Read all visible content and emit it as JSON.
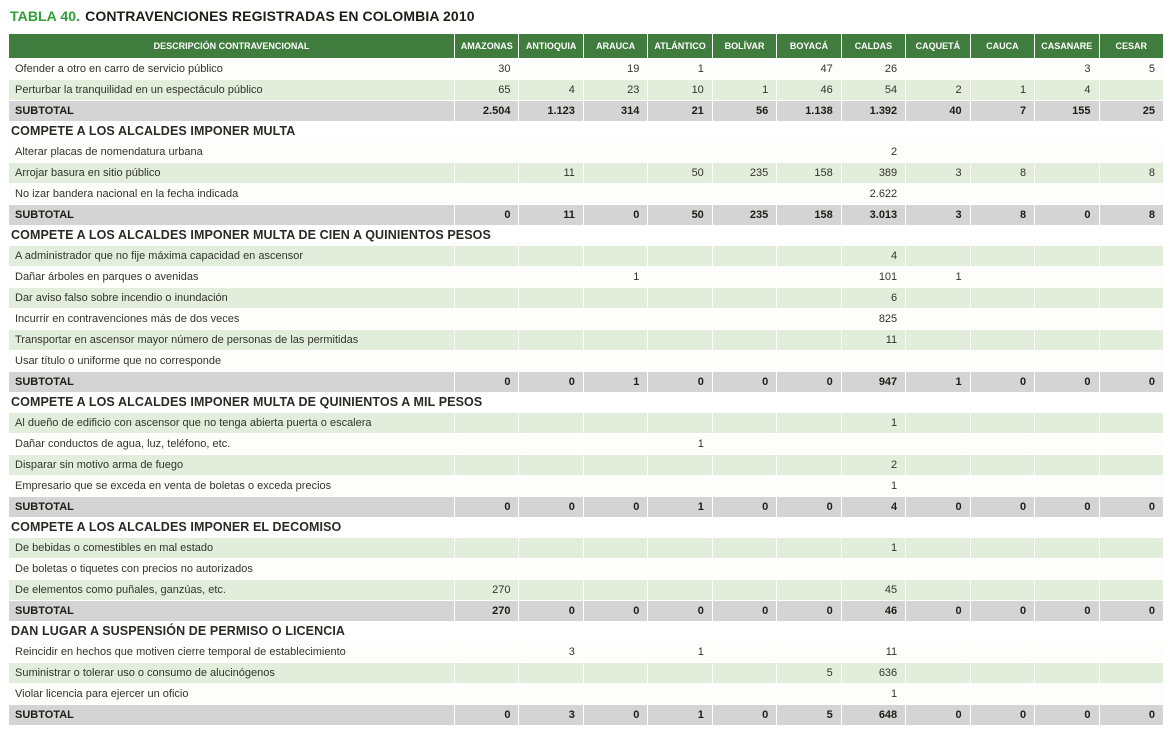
{
  "colors": {
    "title_green": "#2f9e36",
    "header_green": "#3f7c3d",
    "row_tint": "#e2eedb",
    "row_plain": "#fdfdfc",
    "subtotal_gray": "#d4d4d4"
  },
  "title": {
    "prefix": "TABLA 40.",
    "text": "CONTRAVENCIONES REGISTRADAS EN COLOMBIA 2010"
  },
  "table": {
    "columns": [
      "DESCRIPCIÓN CONTRAVENCIONAL",
      "AMAZONAS",
      "ANTIOQUIA",
      "ARAUCA",
      "ATLÁNTICO",
      "BOLÍVAR",
      "BOYACÁ",
      "CALDAS",
      "CAQUETÁ",
      "CAUCA",
      "CASANARE",
      "CESAR"
    ],
    "subtotal_label": "SUBTOTAL",
    "sections": [
      {
        "header": null,
        "rows": [
          {
            "label": "Ofender a otro en carro de servicio público",
            "values": [
              "30",
              "",
              "19",
              "1",
              "",
              "47",
              "26",
              "",
              "",
              "3",
              "5"
            ]
          },
          {
            "label": "Perturbar la tranquilidad en un espectáculo público",
            "values": [
              "65",
              "4",
              "23",
              "10",
              "1",
              "46",
              "54",
              "2",
              "1",
              "4",
              ""
            ]
          }
        ],
        "subtotal": [
          "2.504",
          "1.123",
          "314",
          "21",
          "56",
          "1.138",
          "1.392",
          "40",
          "7",
          "155",
          "25"
        ]
      },
      {
        "header": "COMPETE A LOS ALCALDES IMPONER MULTA",
        "rows": [
          {
            "label": "Alterar placas de nomendatura urbana",
            "values": [
              "",
              "",
              "",
              "",
              "",
              "",
              "2",
              "",
              "",
              "",
              ""
            ]
          },
          {
            "label": "Arrojar basura en sitio público",
            "values": [
              "",
              "11",
              "",
              "50",
              "235",
              "158",
              "389",
              "3",
              "8",
              "",
              "8"
            ]
          },
          {
            "label": "No izar bandera nacional en la fecha indicada",
            "values": [
              "",
              "",
              "",
              "",
              "",
              "",
              "2.622",
              "",
              "",
              "",
              ""
            ]
          }
        ],
        "subtotal": [
          "0",
          "11",
          "0",
          "50",
          "235",
          "158",
          "3.013",
          "3",
          "8",
          "0",
          "8"
        ]
      },
      {
        "header": "COMPETE A LOS ALCALDES IMPONER MULTA DE CIEN A QUINIENTOS PESOS",
        "rows": [
          {
            "label": "A administrador que no fije máxima capacidad en ascensor",
            "values": [
              "",
              "",
              "",
              "",
              "",
              "",
              "4",
              "",
              "",
              "",
              ""
            ]
          },
          {
            "label": "Dañar árboles en parques o avenidas",
            "values": [
              "",
              "",
              "1",
              "",
              "",
              "",
              "101",
              "1",
              "",
              "",
              ""
            ]
          },
          {
            "label": "Dar aviso falso sobre incendio o inundación",
            "values": [
              "",
              "",
              "",
              "",
              "",
              "",
              "6",
              "",
              "",
              "",
              ""
            ]
          },
          {
            "label": "Incurrir en contravenciones más de dos veces",
            "values": [
              "",
              "",
              "",
              "",
              "",
              "",
              "825",
              "",
              "",
              "",
              ""
            ]
          },
          {
            "label": "Transportar en ascensor mayor número de personas de las permitidas",
            "values": [
              "",
              "",
              "",
              "",
              "",
              "",
              "11",
              "",
              "",
              "",
              ""
            ]
          },
          {
            "label": "Usar título o uniforme que no corresponde",
            "values": [
              "",
              "",
              "",
              "",
              "",
              "",
              "",
              "",
              "",
              "",
              ""
            ]
          }
        ],
        "subtotal": [
          "0",
          "0",
          "1",
          "0",
          "0",
          "0",
          "947",
          "1",
          "0",
          "0",
          "0"
        ]
      },
      {
        "header": "COMPETE A LOS ALCALDES IMPONER MULTA DE QUINIENTOS A MIL PESOS",
        "rows": [
          {
            "label": "Al dueño de edificio con ascensor que no tenga abierta puerta o escalera",
            "values": [
              "",
              "",
              "",
              "",
              "",
              "",
              "1",
              "",
              "",
              "",
              ""
            ]
          },
          {
            "label": "Dañar conductos de agua, luz, teléfono, etc.",
            "values": [
              "",
              "",
              "",
              "1",
              "",
              "",
              "",
              "",
              "",
              "",
              ""
            ]
          },
          {
            "label": "Disparar sin motivo arma de fuego",
            "values": [
              "",
              "",
              "",
              "",
              "",
              "",
              "2",
              "",
              "",
              "",
              ""
            ]
          },
          {
            "label": "Empresario que se exceda en venta de boletas o exceda precios",
            "values": [
              "",
              "",
              "",
              "",
              "",
              "",
              "1",
              "",
              "",
              "",
              ""
            ]
          }
        ],
        "subtotal": [
          "0",
          "0",
          "0",
          "1",
          "0",
          "0",
          "4",
          "0",
          "0",
          "0",
          "0"
        ]
      },
      {
        "header": "COMPETE A LOS ALCALDES IMPONER EL DECOMISO",
        "rows": [
          {
            "label": "De bebidas o comestibles en mal estado",
            "values": [
              "",
              "",
              "",
              "",
              "",
              "",
              "1",
              "",
              "",
              "",
              ""
            ]
          },
          {
            "label": "De boletas o tiquetes con precios no autorizados",
            "values": [
              "",
              "",
              "",
              "",
              "",
              "",
              "",
              "",
              "",
              "",
              ""
            ]
          },
          {
            "label": "De elementos como puñales, ganzúas, etc.",
            "values": [
              "270",
              "",
              "",
              "",
              "",
              "",
              "45",
              "",
              "",
              "",
              ""
            ]
          }
        ],
        "subtotal": [
          "270",
          "0",
          "0",
          "0",
          "0",
          "0",
          "46",
          "0",
          "0",
          "0",
          "0"
        ]
      },
      {
        "header": "DAN LUGAR A SUSPENSIÓN DE PERMISO O LICENCIA",
        "rows": [
          {
            "label": "Reincidir en hechos que motiven cierre temporal de establecimiento",
            "values": [
              "",
              "3",
              "",
              "1",
              "",
              "",
              "11",
              "",
              "",
              "",
              ""
            ]
          },
          {
            "label": "Suministrar o tolerar uso o consumo de alucinógenos",
            "values": [
              "",
              "",
              "",
              "",
              "",
              "5",
              "636",
              "",
              "",
              "",
              ""
            ]
          },
          {
            "label": "Violar licencia para ejercer un oficio",
            "values": [
              "",
              "",
              "",
              "",
              "",
              "",
              "1",
              "",
              "",
              "",
              ""
            ]
          }
        ],
        "subtotal": [
          "0",
          "3",
          "0",
          "1",
          "0",
          "5",
          "648",
          "0",
          "0",
          "0",
          "0"
        ]
      }
    ]
  }
}
